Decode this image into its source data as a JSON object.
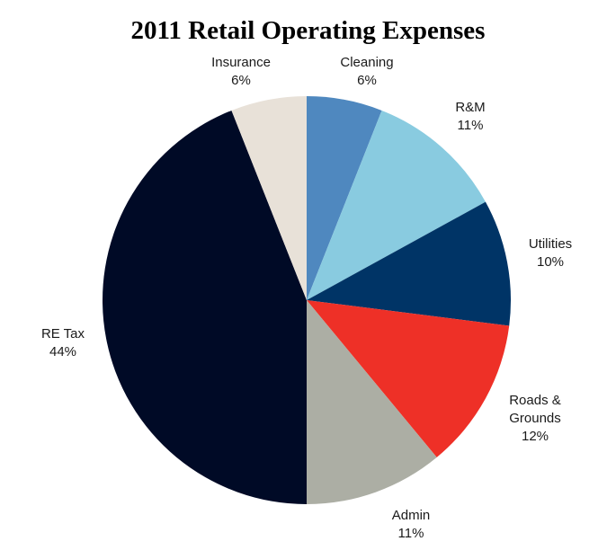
{
  "chart_data": {
    "type": "pie",
    "title": "2011 Retail Operating Expenses",
    "slices": [
      {
        "label": "Cleaning",
        "value": 6,
        "value_label": "6%",
        "color": "#4f88bf"
      },
      {
        "label": "R&M",
        "value": 11,
        "value_label": "11%",
        "color": "#89cbe0"
      },
      {
        "label": "Utilities",
        "value": 10,
        "value_label": "10%",
        "color": "#003466"
      },
      {
        "label": "Roads & Grounds",
        "value": 12,
        "value_label": "12%",
        "color": "#ee3027"
      },
      {
        "label": "Admin",
        "value": 11,
        "value_label": "11%",
        "color": "#acaea4"
      },
      {
        "label": "RE Tax",
        "value": 44,
        "value_label": "44%",
        "color": "#000a26"
      },
      {
        "label": "Insurance",
        "value": 6,
        "value_label": "6%",
        "color": "#e8e1d8"
      }
    ],
    "start_position": "top",
    "direction": "clockwise"
  }
}
